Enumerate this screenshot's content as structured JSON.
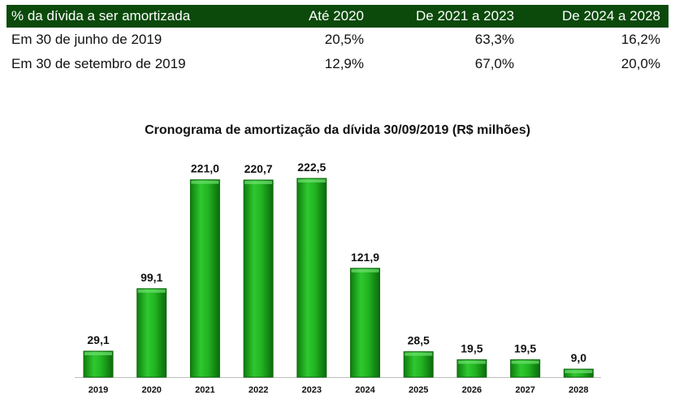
{
  "table": {
    "header_bg": "#0b4a0b",
    "headers": [
      "% da dívida a ser amortizada",
      "Até 2020",
      "De 2021 a 2023",
      "De 2024 a 2028"
    ],
    "rows": [
      [
        "Em 30 de junho de 2019",
        "20,5%",
        "63,3%",
        "16,2%"
      ],
      [
        "Em 30 de setembro de 2019",
        "12,9%",
        "67,0%",
        "20,0%"
      ]
    ]
  },
  "chart_data": {
    "type": "bar",
    "title": "Cronograma de amortização da dívida 30/09/2019 (R$ milhões)",
    "categories": [
      "2019",
      "2020",
      "2021",
      "2022",
      "2023",
      "2024",
      "2025",
      "2026",
      "2027",
      "2028"
    ],
    "values": [
      29.1,
      99.1,
      221.0,
      220.7,
      222.5,
      121.9,
      28.5,
      19.5,
      19.5,
      9.0
    ],
    "data_labels": [
      "29,1",
      "99,1",
      "221,0",
      "220,7",
      "222,5",
      "121,9",
      "28,5",
      "19,5",
      "19,5",
      "9,0"
    ],
    "xlabel": "",
    "ylabel": "",
    "ylim": [
      0,
      222.5
    ],
    "grid": false,
    "bar_color": "#1fae1f",
    "bar_edge_color": "#0d6b0d"
  }
}
